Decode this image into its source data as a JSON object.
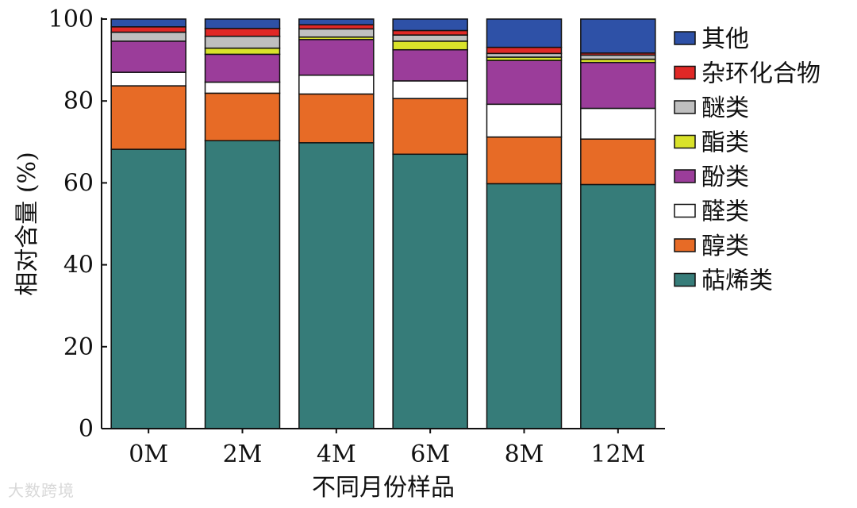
{
  "chart_data": {
    "type": "bar",
    "stacked": true,
    "title": "",
    "xlabel": "不同月份样品",
    "ylabel": "相对含量 (%)",
    "ylim": [
      0,
      100
    ],
    "yticks": [
      0,
      20,
      40,
      60,
      80,
      100
    ],
    "grid": false,
    "legend_position": "right",
    "categories": [
      "0M",
      "2M",
      "4M",
      "6M",
      "8M",
      "12M"
    ],
    "series": [
      {
        "name": "萜烯类",
        "color": "#367c79",
        "values": [
          68.2,
          70.3,
          69.8,
          67.0,
          59.8,
          59.6
        ]
      },
      {
        "name": "醇类",
        "color": "#e76b26",
        "values": [
          15.5,
          11.6,
          11.9,
          13.6,
          11.4,
          11.1
        ]
      },
      {
        "name": "醛类",
        "color": "#ffffff",
        "values": [
          3.3,
          2.7,
          4.6,
          4.3,
          8.0,
          7.5
        ]
      },
      {
        "name": "酚类",
        "color": "#9b3d9a",
        "values": [
          7.6,
          6.8,
          8.7,
          7.6,
          10.7,
          11.2
        ]
      },
      {
        "name": "酯类",
        "color": "#d9e22a",
        "values": [
          0.0,
          1.5,
          0.6,
          2.1,
          0.8,
          0.8
        ]
      },
      {
        "name": "醚类",
        "color": "#bfbfbf",
        "values": [
          2.2,
          2.9,
          2.0,
          1.5,
          0.9,
          1.0
        ]
      },
      {
        "name": "杂环化合物",
        "color": "#e02826",
        "values": [
          1.3,
          1.9,
          1.0,
          1.1,
          1.5,
          0.5
        ]
      },
      {
        "name": "其他",
        "color": "#2e51a7",
        "values": [
          1.9,
          2.3,
          1.4,
          2.8,
          6.9,
          8.3
        ]
      }
    ],
    "legend_order": [
      "其他",
      "杂环化合物",
      "醚类",
      "酯类",
      "酚类",
      "醛类",
      "醇类",
      "萜烯类"
    ]
  },
  "watermark": "大数跨境"
}
